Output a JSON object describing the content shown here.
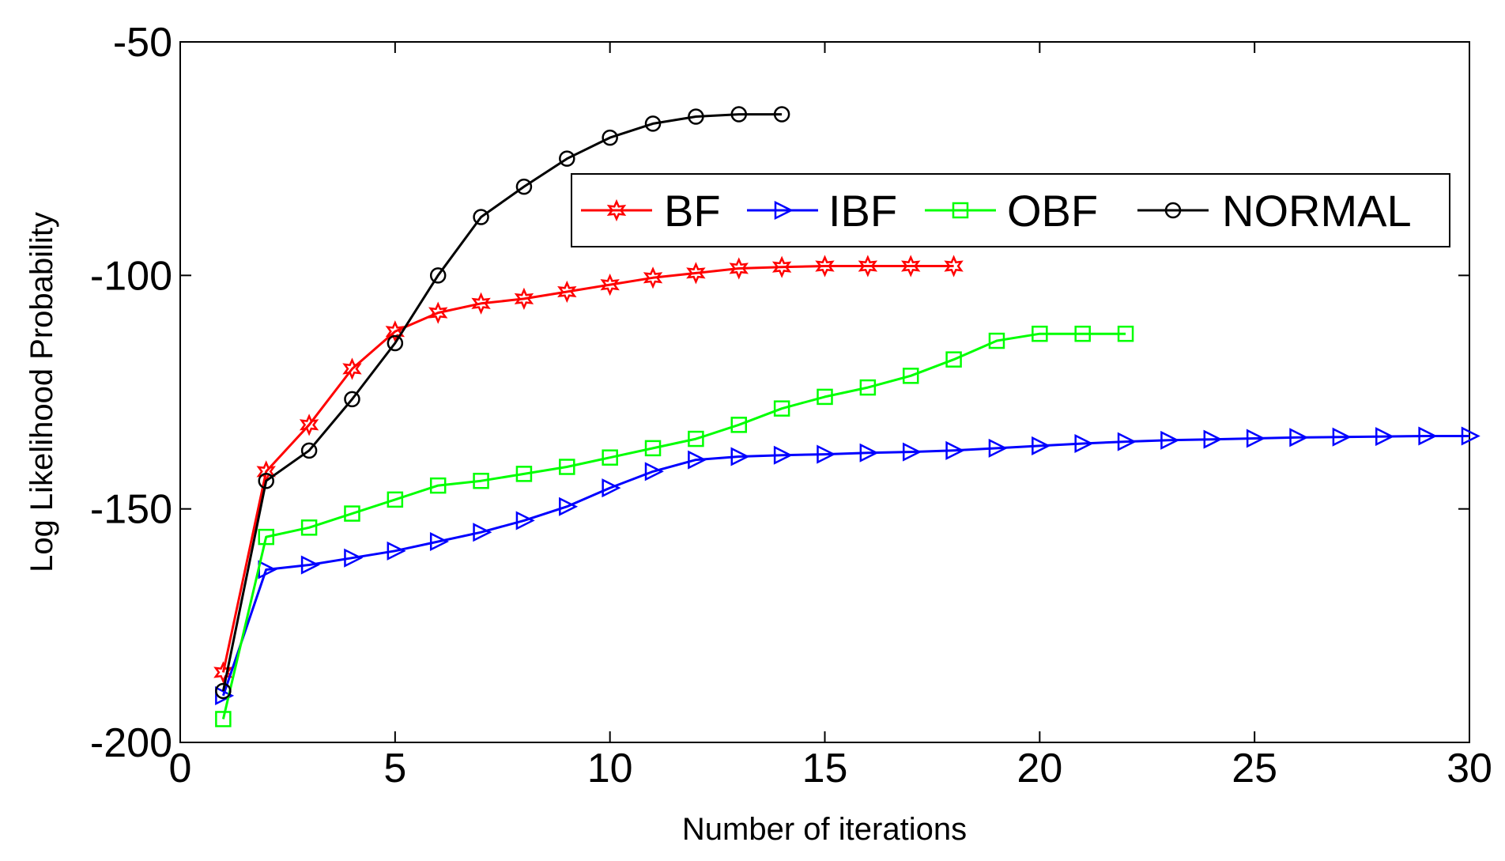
{
  "chart_data": {
    "type": "line",
    "title": "",
    "xlabel": "Number of iterations",
    "ylabel": "Log Likelihood Probability",
    "xlim": [
      0,
      30
    ],
    "ylim": [
      -200,
      -50
    ],
    "xticks": [
      0,
      5,
      10,
      15,
      20,
      25,
      30
    ],
    "yticks": [
      -200,
      -150,
      -100,
      -50
    ],
    "xtick_labels": [
      "0",
      "5",
      "10",
      "15",
      "20",
      "25",
      "30"
    ],
    "ytick_labels": [
      "-200",
      "-150",
      "-100",
      "-50"
    ],
    "grid": false,
    "legend_position": "top-right",
    "series": [
      {
        "name": "BF",
        "color": "#ff0000",
        "marker": "hexagram",
        "x": [
          1,
          2,
          3,
          4,
          5,
          6,
          7,
          8,
          9,
          10,
          11,
          12,
          13,
          14,
          15,
          16,
          17,
          18
        ],
        "y": [
          -185,
          -142,
          -132,
          -120,
          -112,
          -108,
          -106,
          -105,
          -103.5,
          -102,
          -100.5,
          -99.5,
          -98.5,
          -98.2,
          -98,
          -98,
          -98,
          -98
        ]
      },
      {
        "name": "IBF",
        "color": "#0000ff",
        "marker": "triangle-right",
        "x": [
          1,
          2,
          3,
          4,
          5,
          6,
          7,
          8,
          9,
          10,
          11,
          12,
          13,
          14,
          15,
          16,
          17,
          18,
          19,
          20,
          21,
          22,
          23,
          24,
          25,
          26,
          27,
          28,
          29,
          30
        ],
        "y": [
          -190,
          -163,
          -162,
          -160.5,
          -159,
          -157,
          -155,
          -152.5,
          -149.5,
          -145.5,
          -142,
          -139.5,
          -138.8,
          -138.5,
          -138.3,
          -138,
          -137.8,
          -137.5,
          -137,
          -136.5,
          -136,
          -135.6,
          -135.3,
          -135.1,
          -134.9,
          -134.7,
          -134.6,
          -134.5,
          -134.4,
          -134.4
        ]
      },
      {
        "name": "OBF",
        "color": "#00ff00",
        "marker": "square",
        "x": [
          1,
          2,
          3,
          4,
          5,
          6,
          7,
          8,
          9,
          10,
          11,
          12,
          13,
          14,
          15,
          16,
          17,
          18,
          19,
          20,
          21,
          22
        ],
        "y": [
          -195,
          -156,
          -154,
          -151,
          -148,
          -145,
          -144,
          -142.5,
          -141,
          -139,
          -137,
          -135,
          -132,
          -128.5,
          -126,
          -124,
          -121.5,
          -118,
          -114,
          -112.5,
          -112.5,
          -112.5
        ]
      },
      {
        "name": "NORMAL",
        "color": "#000000",
        "marker": "circle",
        "x": [
          1,
          2,
          3,
          4,
          5,
          6,
          7,
          8,
          9,
          10,
          11,
          12,
          13,
          14
        ],
        "y": [
          -189,
          -144,
          -137.5,
          -126.5,
          -114.5,
          -100,
          -87.5,
          -81,
          -75,
          -70.5,
          -67.5,
          -66,
          -65.5,
          -65.5
        ]
      }
    ]
  }
}
